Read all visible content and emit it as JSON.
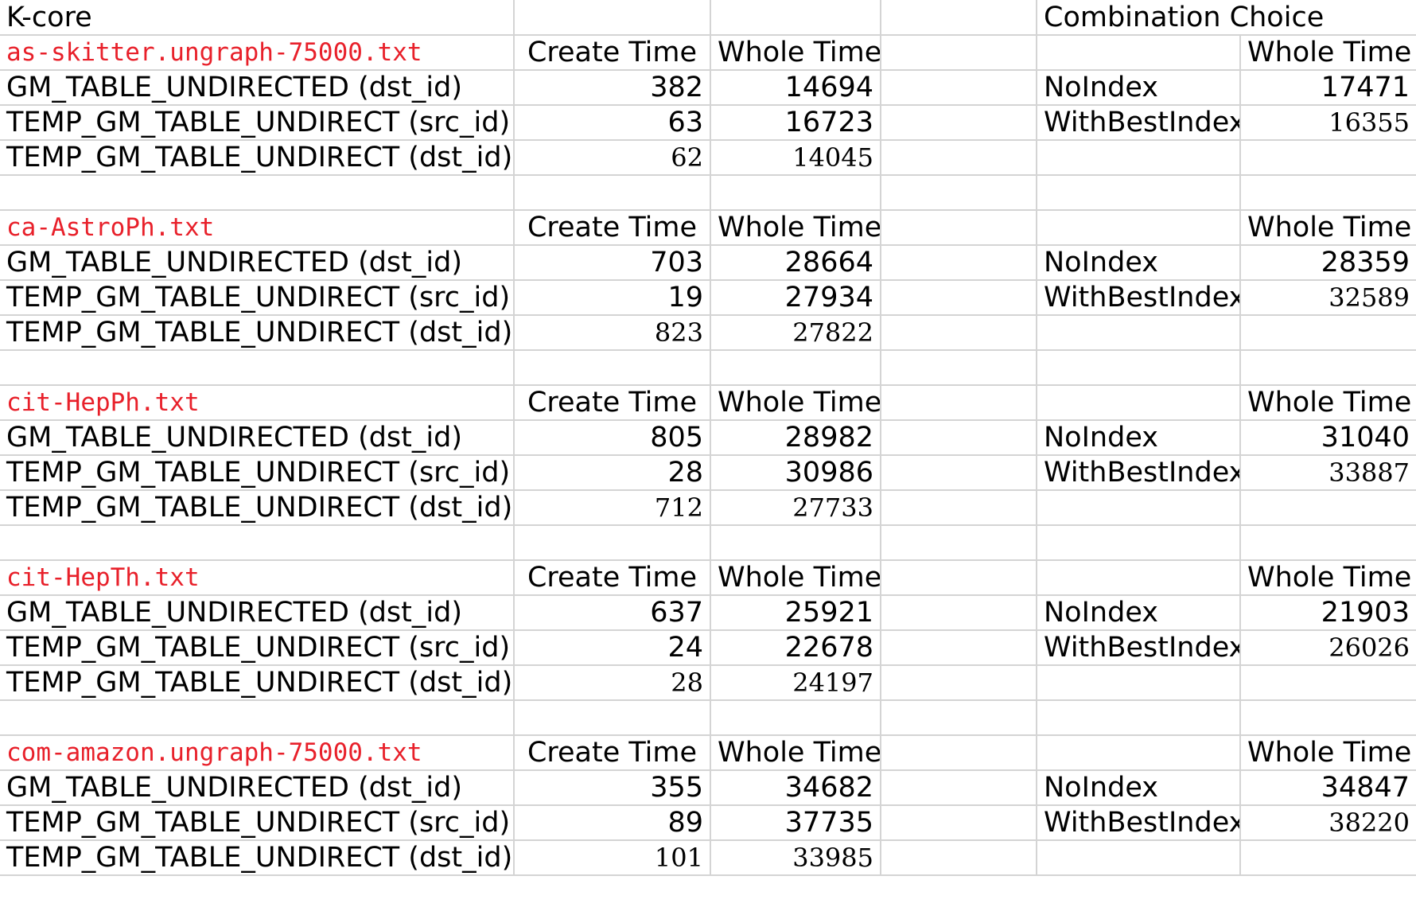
{
  "sheet": {
    "title": "K-core",
    "combination_title": "Combination Choice",
    "create_time_header": "Create Time",
    "whole_time_header": "Whole Time",
    "colors": {
      "dataset_text": "#e8202a",
      "grid": "#d4d4d4"
    },
    "sections": [
      {
        "dataset": "as-skitter.ungraph-75000.txt",
        "rows": [
          {
            "label": "GM_TABLE_UNDIRECTED (dst_id)",
            "create": "382",
            "whole": "14694",
            "choice": "NoIndex",
            "choice_whole": "17471"
          },
          {
            "label": "TEMP_GM_TABLE_UNDIRECT (src_id)",
            "create": "63",
            "whole": "16723",
            "choice": "WithBestIndex",
            "choice_whole": "16355"
          },
          {
            "label": "TEMP_GM_TABLE_UNDIRECT (dst_id)",
            "create": "62",
            "whole": "14045",
            "choice": "",
            "choice_whole": ""
          }
        ]
      },
      {
        "dataset": "ca-AstroPh.txt",
        "rows": [
          {
            "label": "GM_TABLE_UNDIRECTED (dst_id)",
            "create": "703",
            "whole": "28664",
            "choice": "NoIndex",
            "choice_whole": "28359"
          },
          {
            "label": "TEMP_GM_TABLE_UNDIRECT (src_id)",
            "create": "19",
            "whole": "27934",
            "choice": "WithBestIndex",
            "choice_whole": "32589"
          },
          {
            "label": "TEMP_GM_TABLE_UNDIRECT (dst_id)",
            "create": "823",
            "whole": "27822",
            "choice": "",
            "choice_whole": ""
          }
        ]
      },
      {
        "dataset": "cit-HepPh.txt",
        "rows": [
          {
            "label": "GM_TABLE_UNDIRECTED (dst_id)",
            "create": "805",
            "whole": "28982",
            "choice": "NoIndex",
            "choice_whole": "31040"
          },
          {
            "label": "TEMP_GM_TABLE_UNDIRECT (src_id)",
            "create": "28",
            "whole": "30986",
            "choice": "WithBestIndex",
            "choice_whole": "33887"
          },
          {
            "label": "TEMP_GM_TABLE_UNDIRECT (dst_id)",
            "create": "712",
            "whole": "27733",
            "choice": "",
            "choice_whole": ""
          }
        ]
      },
      {
        "dataset": "cit-HepTh.txt",
        "rows": [
          {
            "label": "GM_TABLE_UNDIRECTED (dst_id)",
            "create": "637",
            "whole": "25921",
            "choice": "NoIndex",
            "choice_whole": "21903"
          },
          {
            "label": "TEMP_GM_TABLE_UNDIRECT (src_id)",
            "create": "24",
            "whole": "22678",
            "choice": "WithBestIndex",
            "choice_whole": "26026"
          },
          {
            "label": "TEMP_GM_TABLE_UNDIRECT (dst_id)",
            "create": "28",
            "whole": "24197",
            "choice": "",
            "choice_whole": ""
          }
        ]
      },
      {
        "dataset": "com-amazon.ungraph-75000.txt",
        "rows": [
          {
            "label": "GM_TABLE_UNDIRECTED (dst_id)",
            "create": "355",
            "whole": "34682",
            "choice": "NoIndex",
            "choice_whole": "34847"
          },
          {
            "label": "TEMP_GM_TABLE_UNDIRECT (src_id)",
            "create": "89",
            "whole": "37735",
            "choice": "WithBestIndex",
            "choice_whole": "38220"
          },
          {
            "label": "TEMP_GM_TABLE_UNDIRECT (dst_id)",
            "create": "101",
            "whole": "33985",
            "choice": "",
            "choice_whole": ""
          }
        ]
      }
    ]
  }
}
